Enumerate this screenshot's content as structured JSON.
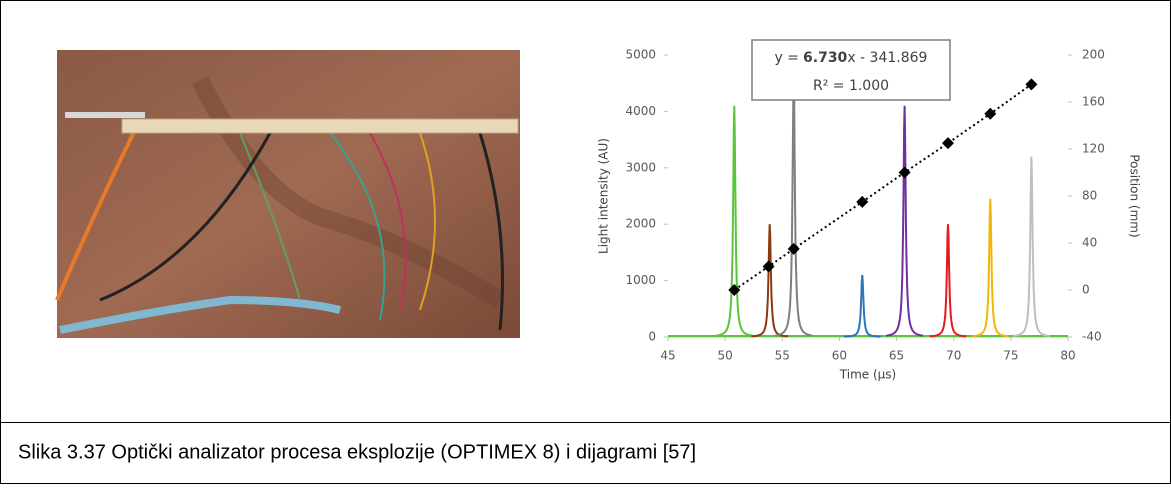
{
  "figure": {
    "chart": {
      "type": "line",
      "xlabel": "Time (µs)",
      "ylabel": "Light intensity (AU)",
      "y2label": "Position (mm)",
      "xlim": [
        45,
        80
      ],
      "xticks": [
        45,
        50,
        55,
        60,
        65,
        70,
        75,
        80
      ],
      "ylim": [
        0,
        5000
      ],
      "yticks": [
        0,
        1000,
        2000,
        3000,
        4000,
        5000
      ],
      "y2lim": [
        -40,
        200
      ],
      "y2ticks": [
        -40,
        0,
        40,
        80,
        120,
        160,
        200
      ],
      "annotation": {
        "lead": "y =",
        "slope": "6.730",
        "rest": "x - 341.869",
        "r2": "R² = 1.000"
      },
      "peaks": [
        {
          "color": "#5ac43a",
          "x": 50.8,
          "value": 4100
        },
        {
          "color": "#8b3a0f",
          "x": 53.9,
          "value": 2000
        },
        {
          "color": "#7f7f7f",
          "x": 56,
          "value": 4700
        },
        {
          "color": "#2e75b6",
          "x": 62,
          "value": 1100
        },
        {
          "color": "#7030a0",
          "x": 65.7,
          "value": 4100
        },
        {
          "color": "#e31a1c",
          "x": 69.5,
          "value": 2000
        },
        {
          "color": "#f2b705",
          "x": 73.2,
          "value": 2450
        },
        {
          "color": "#bfbfbf",
          "x": 76.8,
          "value": 3200
        }
      ],
      "positions": {
        "axis": "y2",
        "color": "#000000",
        "x": [
          50.8,
          53.8,
          56,
          62,
          65.7,
          69.5,
          73.2,
          76.8
        ],
        "values": [
          0,
          20,
          35,
          75,
          100,
          125,
          150,
          175
        ]
      }
    },
    "caption": "Slika 3.37 Optički analizator procesa eksplozije (OPTIMEX 8) i dijagrami [57]"
  }
}
